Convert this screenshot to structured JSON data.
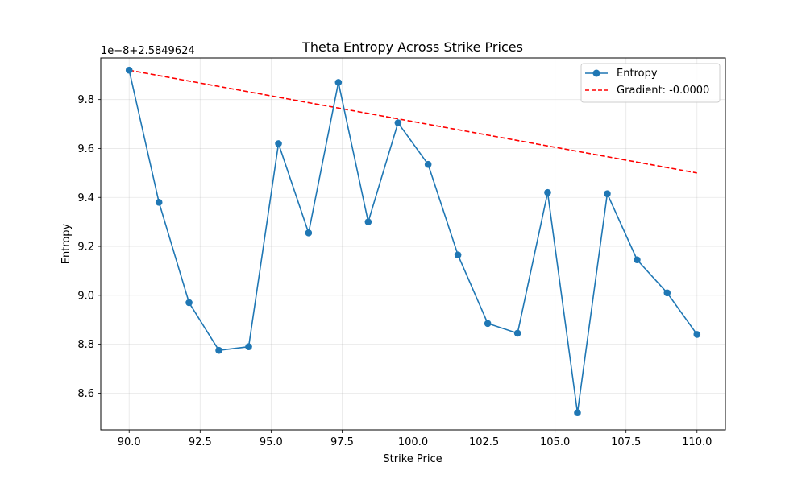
{
  "chart_data": {
    "type": "line",
    "title": "Theta Entropy Across Strike Prices",
    "xlabel": "Strike Price",
    "ylabel": "Entropy",
    "offset_text": "1e−8+2.5849624",
    "xlim": [
      89.0,
      111.0
    ],
    "ylim": [
      8.45,
      9.97
    ],
    "xticks": [
      90.0,
      92.5,
      95.0,
      97.5,
      100.0,
      102.5,
      105.0,
      107.5,
      110.0
    ],
    "xtick_labels": [
      "90.0",
      "92.5",
      "95.0",
      "97.5",
      "100.0",
      "102.5",
      "105.0",
      "107.5",
      "110.0"
    ],
    "yticks": [
      8.6,
      8.8,
      9.0,
      9.2,
      9.4,
      9.6,
      9.8
    ],
    "ytick_labels": [
      "8.6",
      "8.8",
      "9.0",
      "9.2",
      "9.4",
      "9.6",
      "9.8"
    ],
    "grid": true,
    "legend_position": "top-right",
    "x": [
      90.0,
      91.05,
      92.11,
      93.16,
      94.21,
      95.26,
      96.32,
      97.37,
      98.42,
      99.47,
      100.53,
      101.58,
      102.63,
      103.68,
      104.74,
      105.79,
      106.84,
      107.89,
      108.95,
      110.0
    ],
    "series": [
      {
        "name": "Entropy",
        "style": "line-markers",
        "color": "#1f77b4",
        "values": [
          9.92,
          9.38,
          8.97,
          8.775,
          8.79,
          9.62,
          9.255,
          9.87,
          9.3,
          9.705,
          9.535,
          9.165,
          8.885,
          8.845,
          9.42,
          8.52,
          9.415,
          9.145,
          9.01,
          8.84
        ]
      },
      {
        "name": "Gradient: -0.0000",
        "style": "dashed",
        "color": "#ff0000",
        "x": [
          90.0,
          110.0
        ],
        "values": [
          9.92,
          9.5
        ]
      }
    ]
  }
}
